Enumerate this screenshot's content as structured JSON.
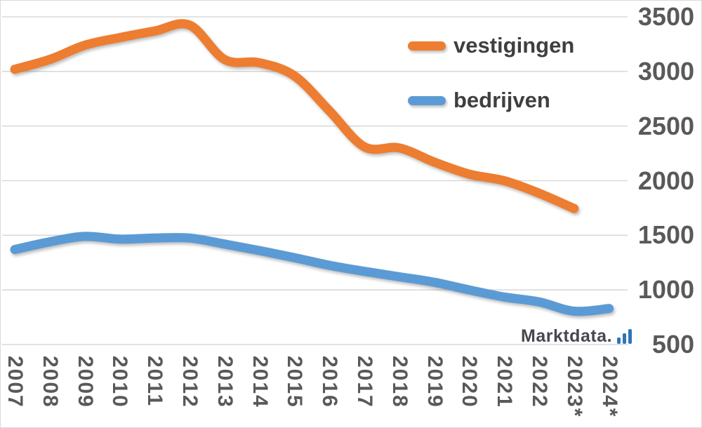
{
  "chart_data": {
    "type": "line",
    "title": "",
    "categories": [
      "2007",
      "2008",
      "2009",
      "2010",
      "2011",
      "2012",
      "2013",
      "2014",
      "2015",
      "2016",
      "2017",
      "2018",
      "2019",
      "2020",
      "2021",
      "2022",
      "2023*",
      "2024*"
    ],
    "series": [
      {
        "name": "vestigingen",
        "color": "#ED7D31",
        "values": [
          3020,
          3110,
          3240,
          3310,
          3370,
          3425,
          3110,
          3080,
          2960,
          2640,
          2310,
          2300,
          2170,
          2060,
          2000,
          1885,
          1745,
          null
        ]
      },
      {
        "name": "bedrijven",
        "color": "#5B9BD5",
        "values": [
          1370,
          1440,
          1490,
          1465,
          1475,
          1475,
          1420,
          1360,
          1295,
          1225,
          1170,
          1120,
          1070,
          1000,
          935,
          890,
          805,
          830
        ]
      }
    ],
    "xlabel": "",
    "ylabel": "",
    "ylim": [
      500,
      3500
    ],
    "y_axis": {
      "min": 500,
      "max": 3500,
      "step": 500,
      "side": "right",
      "ticks": [
        "3500",
        "3000",
        "2500",
        "2000",
        "1500",
        "1000",
        "500"
      ]
    },
    "grid": true,
    "legend_position": "inside-top-right",
    "smooth": true
  },
  "legend": {
    "items": [
      {
        "label": "vestigingen",
        "color": "#ED7D31"
      },
      {
        "label": "bedrijven",
        "color": "#5B9BD5"
      }
    ]
  },
  "watermark": {
    "text": "Marktdata.",
    "icon": "bar-chart-icon",
    "icon_color": "#2E75B6",
    "text_color": "#474751"
  },
  "colors": {
    "background": "#FFFFFF",
    "gridline": "#D9D9D9",
    "axis_text": "#595959",
    "legend_text": "#3F3F3F"
  }
}
